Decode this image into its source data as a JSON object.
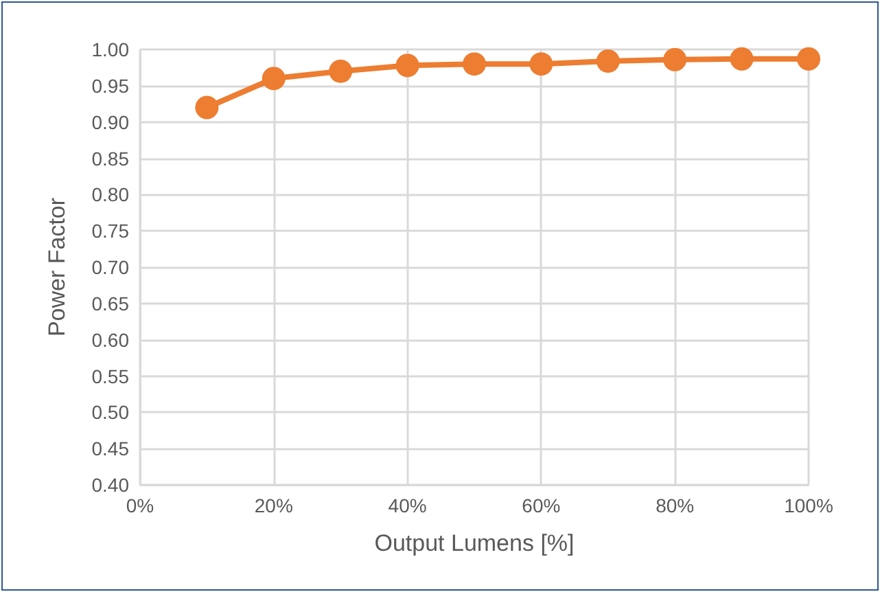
{
  "chart_data": {
    "type": "line",
    "xlabel": "Output Lumens [%]",
    "ylabel": "Power Factor",
    "x": [
      10,
      20,
      30,
      40,
      50,
      60,
      70,
      80,
      90,
      100
    ],
    "series": [
      {
        "color": "#ed7d31",
        "values": [
          0.92,
          0.96,
          0.97,
          0.978,
          0.98,
          0.98,
          0.984,
          0.986,
          0.987,
          0.987
        ]
      }
    ],
    "xlim": [
      0,
      100
    ],
    "xticks": [
      {
        "value": 0,
        "label": "0%"
      },
      {
        "value": 20,
        "label": "20%"
      },
      {
        "value": 40,
        "label": "40%"
      },
      {
        "value": 60,
        "label": "60%"
      },
      {
        "value": 80,
        "label": "80%"
      },
      {
        "value": 100,
        "label": "100%"
      }
    ],
    "ylim": [
      0.4,
      1
    ],
    "yticks": [
      {
        "value": 0.4,
        "label": "0.40"
      },
      {
        "value": 0.45,
        "label": "0.45"
      },
      {
        "value": 0.5,
        "label": "0.50"
      },
      {
        "value": 0.55,
        "label": "0.55"
      },
      {
        "value": 0.6,
        "label": "0.60"
      },
      {
        "value": 0.65,
        "label": "0.65"
      },
      {
        "value": 0.7,
        "label": "0.70"
      },
      {
        "value": 0.75,
        "label": "0.75"
      },
      {
        "value": 0.8,
        "label": "0.80"
      },
      {
        "value": 0.85,
        "label": "0.85"
      },
      {
        "value": 0.9,
        "label": "0.90"
      },
      {
        "value": 0.95,
        "label": "0.95"
      },
      {
        "value": 1,
        "label": "1.00"
      }
    ],
    "grid": true,
    "marker": "circle",
    "line_style": "solid"
  }
}
